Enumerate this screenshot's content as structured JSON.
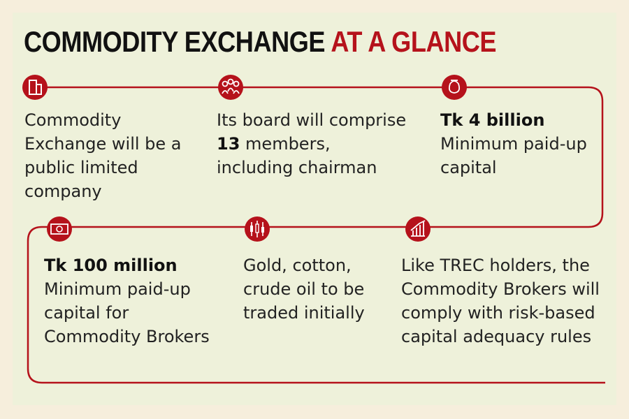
{
  "header": {
    "title": "COMMODITY EXCHANGE",
    "title_highlight": "AT A GLANCE"
  },
  "items": [
    {
      "text": "Commodity Exchange will be a public limited company"
    },
    {
      "text": "Its board will comprise",
      "highlight": "13",
      "text_after": "members, including chairman"
    },
    {
      "heading": "Tk 4 billion",
      "text": "Minimum paid-up capital"
    },
    {
      "heading": "Tk 100 million",
      "text": "Minimum paid-up capital for Commodity Brokers"
    },
    {
      "text": "Gold, cotton, crude oil to be traded initially"
    },
    {
      "text": "Like TREC holders, the Commodity Brokers will comply with risk-based capital adequacy rules"
    }
  ]
}
